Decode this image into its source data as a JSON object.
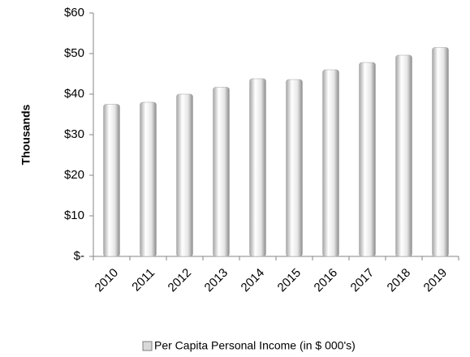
{
  "chart_data": {
    "type": "bar",
    "y_axis_label": "Thousands",
    "categories": [
      "2010",
      "2011",
      "2012",
      "2013",
      "2014",
      "2015",
      "2016",
      "2017",
      "2018",
      "2019"
    ],
    "series": [
      {
        "name": "Per Capita Personal Income (in $ 000's)",
        "color": "#d9d9d9",
        "values": [
          37.5,
          38,
          40,
          41.7,
          43.8,
          43.6,
          46,
          47.8,
          49.6,
          51.5
        ]
      }
    ],
    "ylim": [
      0,
      60
    ],
    "yticks": [
      {
        "value": 0,
        "label": "$-"
      },
      {
        "value": 10,
        "label": "$10"
      },
      {
        "value": 20,
        "label": "$20"
      },
      {
        "value": 30,
        "label": "$30"
      },
      {
        "value": 40,
        "label": "$40"
      },
      {
        "value": 50,
        "label": "$50"
      },
      {
        "value": 60,
        "label": "$60"
      }
    ],
    "grid": false,
    "legend": "bottom"
  }
}
